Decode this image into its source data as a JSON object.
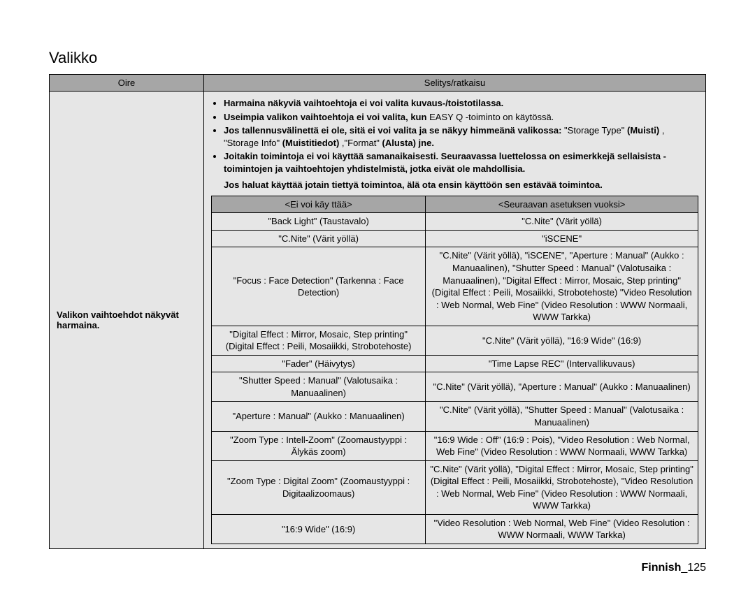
{
  "section_title": "Valikko",
  "outer_header_left": "Oire",
  "outer_header_right": "Selitys/ratkaisu",
  "left_label": "Valikon vaihtoehdot näkyvät harmaina.",
  "bullets": {
    "b1": "Harmaina näkyviä vaihtoehtoja ei voi valita kuvaus-/toistotilassa.",
    "b2a": "Useimpia valikon vaihtoehtoja ei voi valita, kun",
    "b2b": "EASY Q -toiminto on käytössä.",
    "b3a": "Jos tallennusvälinettä ei ole, sitä ei voi valita ja se näkyy himmeänä valikossa:",
    "b3b": "\"Storage Type\"",
    "b3c": "(Muisti)",
    "b3d": ", \"Storage Info\"",
    "b3e": "(Muistitiedot)",
    "b3f": ",\"Format\"",
    "b3g": "(Alusta) jne.",
    "b4": "Joitakin toimintoja ei voi käyttää samanaikaisesti. Seuraavassa luettelossa on esimerkkejä sellaisista -toimintojen ja vaihtoehtojen yhdistelmistä, jotka eivät ole mahdollisia."
  },
  "postnote": "Jos haluat käyttää jotain tiettyä toimintoa, älä ota ensin käyttöön sen estävää toimintoa.",
  "inner_header_left": "<Ei voi käy ttää>",
  "inner_header_right": "<Seuraavan asetuksen vuoksi>",
  "rows": [
    {
      "l": "\"Back Light\" (Taustavalo)",
      "r": "\"C.Nite\" (Värit yöllä)"
    },
    {
      "l": "\"C.Nite\" (Värit yöllä)",
      "r": "\"iSCENE\""
    },
    {
      "l": "\"Focus : Face Detection\" (Tarkenna : Face Detection)",
      "r": "\"C.Nite\" (Värit yöllä), \"iSCENE\", \"Aperture : Manual\" (Aukko : Manuaalinen), \"Shutter Speed : Manual\" (Valotusaika : Manuaalinen), \"Digital Effect : Mirror, Mosaic, Step printing\" (Digital Effect : Peili, Mosaiikki, Strobotehoste)    \"Video Resolution : Web Normal, Web Fine\" (Video Resolution : WWW Normaali, WWW Tarkka)"
    },
    {
      "l": "\"Digital Effect : Mirror, Mosaic, Step printing\" (Digital Effect : Peili, Mosaiikki, Strobotehoste)",
      "r": "\"C.Nite\" (Värit yöllä), \"16:9 Wide\" (16:9)"
    },
    {
      "l": "\"Fader\" (Häivytys)",
      "r": "\"Time Lapse REC\" (Intervallikuvaus)"
    },
    {
      "l": "\"Shutter Speed : Manual\" (Valotusaika : Manuaalinen)",
      "r": "\"C.Nite\" (Värit yöllä), \"Aperture : Manual\" (Aukko : Manuaalinen)"
    },
    {
      "l": "\"Aperture : Manual\" (Aukko : Manuaalinen)",
      "r": "\"C.Nite\" (Värit yöllä), \"Shutter Speed : Manual\" (Valotusaika : Manuaalinen)"
    },
    {
      "l": "\"Zoom Type : Intell-Zoom\" (Zoomaustyyppi : Älykäs zoom)",
      "r": "\"16:9 Wide : Off\" (16:9 : Pois), \"Video Resolution : Web Normal, Web Fine\" (Video Resolution : WWW Normaali, WWW Tarkka)"
    },
    {
      "l": "\"Zoom Type : Digital Zoom\" (Zoomaustyyppi : Digitaalizoomaus)",
      "r": "\"C.Nite\" (Värit yöllä), \"Digital Effect : Mirror, Mosaic, Step printing\" (Digital Effect : Peili, Mosaiikki, Strobotehoste),    \"Video Resolution : Web Normal, Web Fine\"  (Video Resolution : WWW Normaali, WWW Tarkka)"
    },
    {
      "l": "\"16:9 Wide\" (16:9)",
      "r": "\"Video Resolution : Web Normal, Web Fine\" (Video Resolution : WWW Normaali, WWW Tarkka)"
    }
  ],
  "footer_lang": "Finnish",
  "footer_pagenum": "125"
}
